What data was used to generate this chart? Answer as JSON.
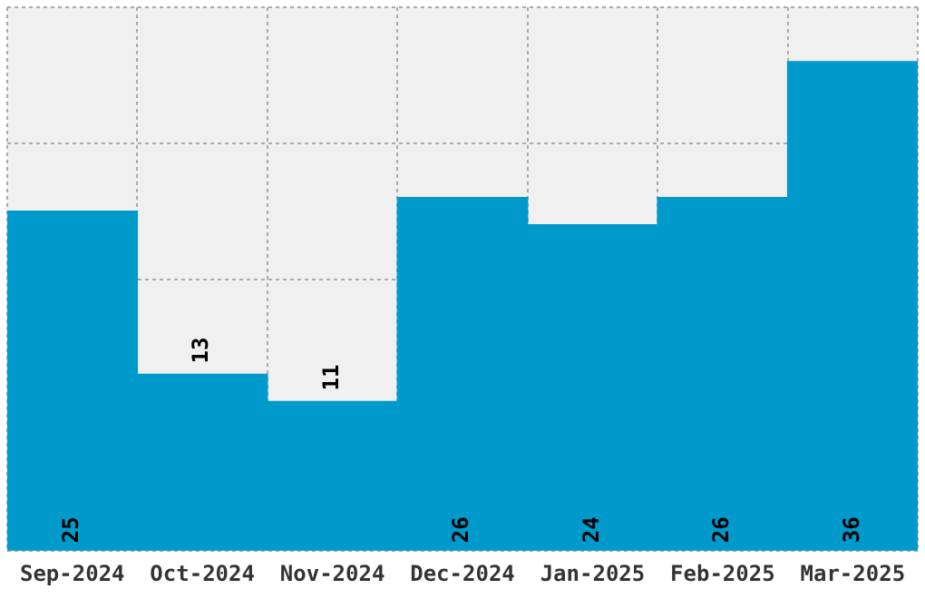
{
  "chart_data": {
    "type": "bar",
    "categories": [
      "Sep-2024",
      "Oct-2024",
      "Nov-2024",
      "Dec-2024",
      "Jan-2025",
      "Feb-2025",
      "Mar-2025"
    ],
    "values": [
      25,
      13,
      11,
      26,
      24,
      26,
      36
    ],
    "color": "#0099cc",
    "ylim": [
      0,
      40
    ],
    "grid": true,
    "data_labels": true,
    "tick_labels": "x"
  }
}
